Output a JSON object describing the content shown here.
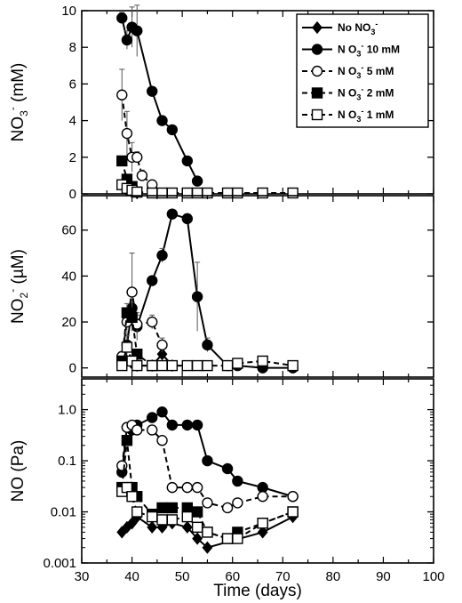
{
  "chart_data": [
    {
      "type": "line",
      "panel": "top",
      "ylabel": {
        "base": "NO",
        "sub": "3",
        "sup": "-",
        "unit": " (mM)"
      },
      "ylim": [
        0,
        10
      ],
      "yticks": [
        "0",
        "2",
        "4",
        "6",
        "8",
        "10"
      ],
      "xlim": [
        30,
        100
      ],
      "legend": {
        "placement": "top-right",
        "entries": [
          {
            "series": 0,
            "parts": [
              {
                "t": "No  NO"
              },
              {
                "t": "3",
                "d": "sub"
              },
              {
                "t": "-",
                "d": "sup"
              }
            ]
          },
          {
            "series": 1,
            "parts": [
              {
                "t": "N O"
              },
              {
                "t": "3",
                "d": "sub"
              },
              {
                "t": "-",
                "d": "sup"
              },
              {
                "t": " 10 mM"
              }
            ]
          },
          {
            "series": 2,
            "parts": [
              {
                "t": "N O"
              },
              {
                "t": "3",
                "d": "sub"
              },
              {
                "t": "-",
                "d": "sup"
              },
              {
                "t": " 5 mM"
              }
            ]
          },
          {
            "series": 3,
            "parts": [
              {
                "t": "N O"
              },
              {
                "t": "3",
                "d": "sub"
              },
              {
                "t": "-",
                "d": "sup"
              },
              {
                "t": " 2 mM"
              }
            ]
          },
          {
            "series": 4,
            "parts": [
              {
                "t": "N O"
              },
              {
                "t": "3",
                "d": "sub"
              },
              {
                "t": "-",
                "d": "sup"
              },
              {
                "t": " 1 mM"
              }
            ]
          }
        ]
      },
      "series": [
        {
          "marker": "diamond",
          "fill": "#000000",
          "dash": "none",
          "x": [
            38,
            39,
            40,
            41
          ],
          "y": [
            0.5,
            0.2,
            0.1,
            0.05
          ]
        },
        {
          "marker": "circle",
          "fill": "#000000",
          "dash": "none",
          "x": [
            38,
            39,
            40,
            41,
            44,
            46,
            48,
            51,
            53
          ],
          "y": [
            9.6,
            8.4,
            9.1,
            8.9,
            5.6,
            4.0,
            3.5,
            1.8,
            0.7
          ],
          "err": [
            0.3,
            0.5,
            1.1,
            1.4,
            0.2,
            0.2,
            0.2,
            0.2,
            0.1
          ]
        },
        {
          "marker": "circle",
          "fill": "#ffffff",
          "dash": "6,4",
          "x": [
            38,
            39,
            40,
            41,
            42,
            44
          ],
          "y": [
            5.4,
            3.3,
            2.0,
            2.0,
            1.0,
            0.5
          ],
          "err": [
            1.4,
            1.2,
            0.8,
            0.3,
            0.3,
            0.1
          ]
        },
        {
          "marker": "square",
          "fill": "#000000",
          "dash": "6,4",
          "x": [
            38,
            39,
            40,
            41
          ],
          "y": [
            1.8,
            0.8,
            0.4,
            0.1
          ]
        },
        {
          "marker": "square",
          "fill": "#ffffff",
          "dash": "6,4",
          "x": [
            38,
            39,
            40,
            41,
            44,
            46,
            48,
            51,
            53,
            55,
            59,
            61,
            66,
            72
          ],
          "y": [
            0.5,
            0.3,
            0.2,
            0.1,
            0.05,
            0.05,
            0.05,
            0.05,
            0.05,
            0.05,
            0.05,
            0.05,
            0.05,
            0.05
          ]
        }
      ]
    },
    {
      "type": "line",
      "panel": "middle",
      "ylabel": {
        "base": "NO",
        "sub": "2",
        "sup": "-",
        "unit": " (µM)"
      },
      "ylim": [
        -4,
        75
      ],
      "yticks": [
        "0",
        "20",
        "40",
        "60"
      ],
      "xlim": [
        30,
        100
      ],
      "series": [
        {
          "marker": "diamond",
          "fill": "#000000",
          "dash": "none",
          "x": [
            38,
            39,
            40,
            41,
            44,
            46,
            48
          ],
          "y": [
            2,
            3,
            2,
            1,
            1,
            6,
            1
          ]
        },
        {
          "marker": "circle",
          "fill": "#000000",
          "dash": "none",
          "x": [
            38,
            39,
            40,
            41,
            44,
            46,
            48,
            51,
            53,
            55,
            59,
            61,
            66,
            72
          ],
          "y": [
            2,
            10,
            26,
            18,
            38,
            49,
            67,
            65,
            31,
            10,
            1,
            1,
            0,
            0
          ],
          "err": [
            1,
            4,
            9,
            6,
            2,
            3,
            1,
            1,
            15,
            3,
            1,
            1,
            1,
            1
          ]
        },
        {
          "marker": "circle",
          "fill": "#ffffff",
          "dash": "6,4",
          "x": [
            38,
            39,
            40,
            41,
            44,
            46
          ],
          "y": [
            5,
            20,
            33,
            19,
            20,
            10
          ],
          "err": [
            2,
            8,
            17,
            4,
            3,
            3
          ]
        },
        {
          "marker": "square",
          "fill": "#000000",
          "dash": "6,4",
          "x": [
            38,
            39,
            40,
            41,
            44
          ],
          "y": [
            3,
            24,
            22,
            6,
            1
          ]
        },
        {
          "marker": "square",
          "fill": "#ffffff",
          "dash": "6,4",
          "x": [
            38,
            39,
            40,
            41,
            44,
            46,
            48,
            51,
            53,
            55,
            59,
            61,
            66,
            72
          ],
          "y": [
            1,
            9,
            3,
            1,
            1,
            1,
            1,
            1,
            1,
            1,
            1,
            2,
            3,
            1
          ]
        }
      ]
    },
    {
      "type": "line",
      "panel": "bottom",
      "ylabel": {
        "base": "NO",
        "sub": "",
        "sup": "",
        "unit": " (Pa)"
      },
      "yscale": "log",
      "ylim": [
        0.001,
        4
      ],
      "yticks": [
        "0.001",
        "0.01",
        "0.1",
        "1.0"
      ],
      "xlim": [
        30,
        100
      ],
      "xticks": [
        "30",
        "40",
        "50",
        "60",
        "70",
        "80",
        "90",
        "100"
      ],
      "xlabel": "Time (days)",
      "series": [
        {
          "marker": "diamond",
          "fill": "#000000",
          "dash": "none",
          "x": [
            38,
            39,
            40,
            41,
            44,
            46,
            48,
            51,
            53,
            55,
            66,
            72
          ],
          "y": [
            0.004,
            0.005,
            0.006,
            0.008,
            0.005,
            0.005,
            0.006,
            0.005,
            0.003,
            0.002,
            0.004,
            0.008
          ]
        },
        {
          "marker": "circle",
          "fill": "#000000",
          "dash": "none",
          "x": [
            38,
            39,
            40,
            41,
            44,
            46,
            48,
            51,
            53,
            55,
            59,
            61,
            66,
            72
          ],
          "y": [
            0.06,
            0.45,
            0.4,
            0.5,
            0.7,
            0.9,
            0.5,
            0.5,
            0.5,
            0.1,
            0.07,
            0.04,
            0.03,
            0.02
          ]
        },
        {
          "marker": "circle",
          "fill": "#ffffff",
          "dash": "6,4",
          "x": [
            38,
            39,
            40,
            41,
            44,
            46,
            48,
            51,
            53,
            55,
            59,
            61,
            66,
            72
          ],
          "y": [
            0.08,
            0.45,
            0.5,
            0.4,
            0.4,
            0.25,
            0.03,
            0.03,
            0.03,
            0.015,
            0.012,
            0.015,
            0.02,
            0.02
          ]
        },
        {
          "marker": "square",
          "fill": "#000000",
          "dash": "6,4",
          "x": [
            38,
            39,
            40,
            41,
            44,
            46,
            48,
            51,
            53,
            55,
            59,
            61,
            66,
            72
          ],
          "y": [
            0.03,
            0.25,
            0.03,
            0.02,
            0.009,
            0.012,
            0.012,
            0.012,
            0.01,
            0.004,
            0.003,
            0.004,
            0.006,
            0.01
          ]
        },
        {
          "marker": "square",
          "fill": "#ffffff",
          "dash": "6,4",
          "x": [
            38,
            39,
            40,
            41,
            44,
            46,
            48,
            51,
            53,
            55,
            59,
            61,
            66,
            72
          ],
          "y": [
            0.025,
            0.03,
            0.02,
            0.01,
            0.008,
            0.007,
            0.007,
            0.008,
            0.005,
            0.004,
            0.003,
            0.003,
            0.006,
            0.01
          ]
        }
      ]
    }
  ]
}
